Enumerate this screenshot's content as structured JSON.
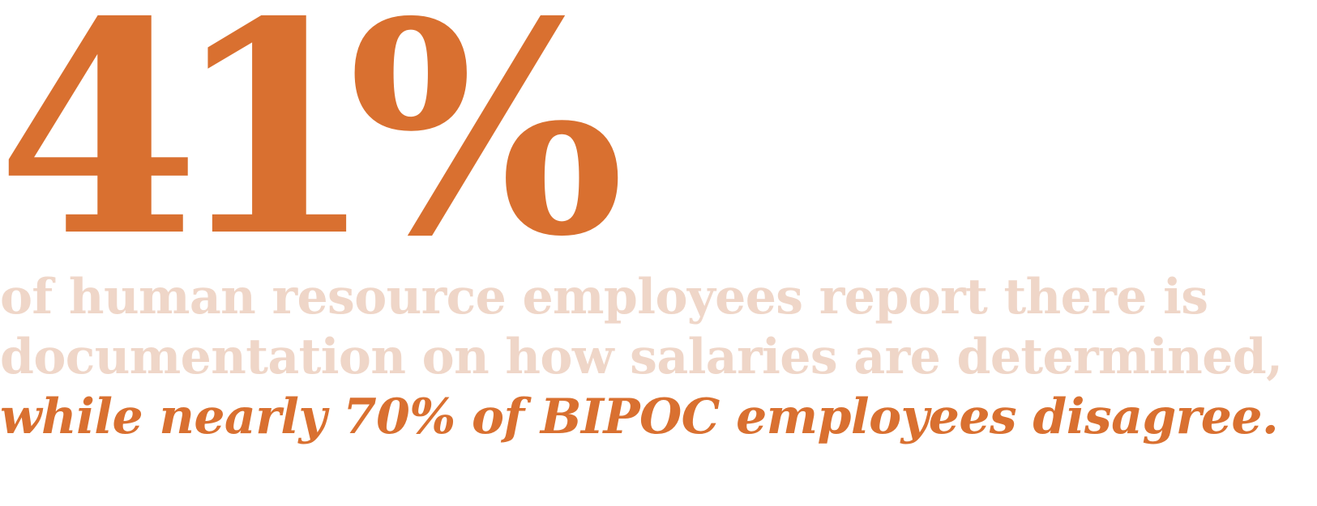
{
  "stat": {
    "value": "41%",
    "color": "#d97030"
  },
  "description": {
    "line1": "of human resource employees report there is",
    "line2": "documentation on how salaries are determined,",
    "highlight": "while nearly 70% of BIPOC employees disagree.",
    "muted_color": "#efd6c8",
    "highlight_color": "#d97030"
  }
}
